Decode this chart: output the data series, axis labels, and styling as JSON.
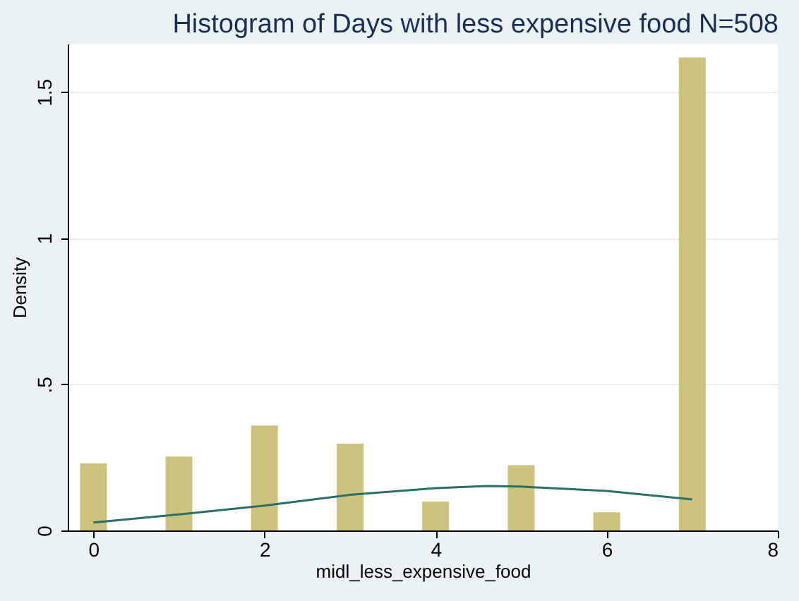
{
  "chart_data": {
    "type": "bar",
    "title": "Histogram of Days with less expensive food N=508",
    "xlabel": "midl_less_expensive_food",
    "ylabel": "Density",
    "xlim": [
      -0.3,
      8
    ],
    "xticks": [
      0,
      2,
      4,
      6,
      8
    ],
    "ylim": [
      0,
      1.665
    ],
    "yticks": [
      0,
      {
        "value": 0.5,
        "label": ".5"
      },
      1,
      1.5
    ],
    "grid": "y",
    "series": [
      {
        "color": "#ccc37e",
        "x": [
          0,
          1,
          2,
          3,
          4,
          5,
          6,
          7
        ],
        "values": [
          0.23,
          0.253,
          0.359,
          0.297,
          0.099,
          0.223,
          0.062,
          1.618
        ]
      },
      {
        "type": "line",
        "color": "#2a7068",
        "x": [
          0,
          1,
          2,
          3,
          4,
          4.6,
          5,
          6,
          7
        ],
        "values": [
          0.027,
          0.055,
          0.085,
          0.122,
          0.145,
          0.152,
          0.15,
          0.135,
          0.106
        ]
      }
    ]
  }
}
